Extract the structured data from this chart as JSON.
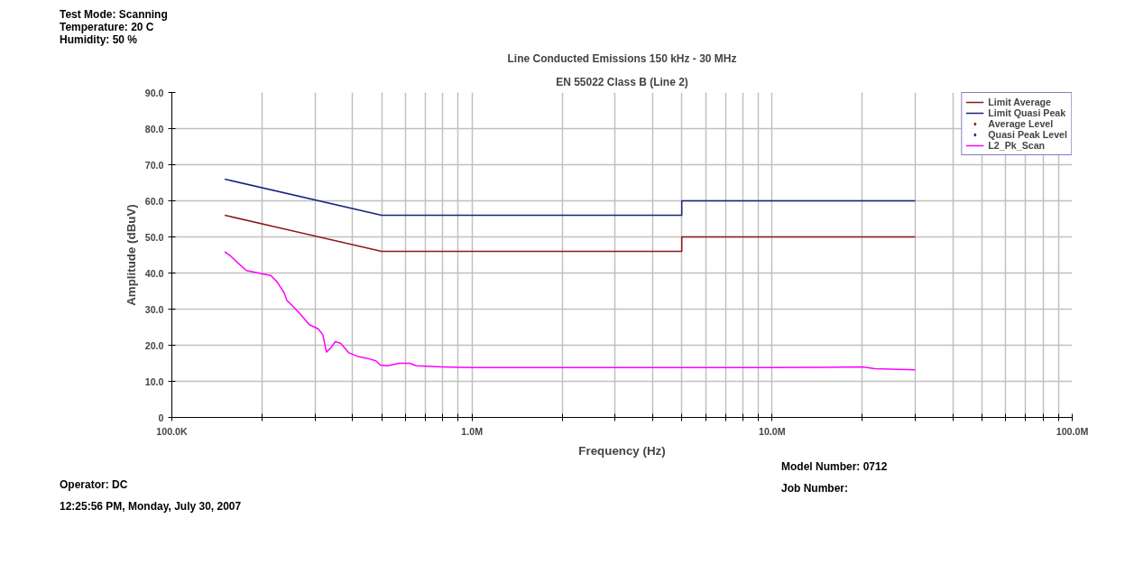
{
  "chart_data": {
    "type": "line",
    "title": "Line Conducted Emissions 150 kHz - 30 MHz",
    "subtitle": "EN 55022 Class B (Line 2)",
    "xlabel": "Frequency (Hz)",
    "ylabel": "Amplitude (dBuV)",
    "log": "x",
    "xlim": [
      100000,
      100000000
    ],
    "ylim": [
      0,
      90
    ],
    "xticks": [
      {
        "value": 100000,
        "label": "100.0K"
      },
      {
        "value": 200000,
        "label": null
      },
      {
        "value": 300000,
        "label": null
      },
      {
        "value": 400000,
        "label": null
      },
      {
        "value": 500000,
        "label": null
      },
      {
        "value": 600000,
        "label": null
      },
      {
        "value": 700000,
        "label": null
      },
      {
        "value": 800000,
        "label": null
      },
      {
        "value": 900000,
        "label": null
      },
      {
        "value": 1000000,
        "label": "1.0M"
      },
      {
        "value": 2000000,
        "label": null
      },
      {
        "value": 3000000,
        "label": null
      },
      {
        "value": 4000000,
        "label": null
      },
      {
        "value": 5000000,
        "label": null
      },
      {
        "value": 6000000,
        "label": null
      },
      {
        "value": 7000000,
        "label": null
      },
      {
        "value": 8000000,
        "label": null
      },
      {
        "value": 9000000,
        "label": null
      },
      {
        "value": 10000000,
        "label": "10.0M"
      },
      {
        "value": 20000000,
        "label": null
      },
      {
        "value": 30000000,
        "label": null
      },
      {
        "value": 40000000,
        "label": null
      },
      {
        "value": 50000000,
        "label": null
      },
      {
        "value": 60000000,
        "label": null
      },
      {
        "value": 70000000,
        "label": null
      },
      {
        "value": 80000000,
        "label": null
      },
      {
        "value": 90000000,
        "label": null
      },
      {
        "value": 100000000,
        "label": "100.0M"
      }
    ],
    "yticks": [
      0,
      {
        "value": 10,
        "label": "10.0"
      },
      {
        "value": 20,
        "label": "20.0"
      },
      {
        "value": 30,
        "label": "30.0"
      },
      {
        "value": 40,
        "label": "40.0"
      },
      {
        "value": 50,
        "label": "50.0"
      },
      {
        "value": 60,
        "label": "60.0"
      },
      {
        "value": 70,
        "label": "70.0"
      },
      {
        "value": 80,
        "label": "80.0"
      },
      {
        "value": 90,
        "label": "90.0"
      }
    ],
    "grid": true,
    "legend": "top right",
    "line_style": "solid",
    "series": [
      {
        "name": "Limit Average",
        "color": "#8b1a1a",
        "x": [
          150000,
          500000,
          5000000,
          5000000,
          30000000
        ],
        "values": [
          56,
          46,
          46,
          50,
          50
        ]
      },
      {
        "name": "Limit Quasi Peak",
        "color": "#1a237e",
        "x": [
          150000,
          500000,
          5000000,
          5000000,
          30000000
        ],
        "values": [
          66,
          56,
          56,
          60,
          60
        ]
      },
      {
        "name": "Average Level",
        "color": "#8b1a1a",
        "type": "scatter",
        "marker": "diamond"
      },
      {
        "name": "Quasi Peak Level",
        "color": "#1a237e",
        "type": "scatter",
        "marker": "diamond"
      },
      {
        "name": "L2_Pk_Scan",
        "color": "#ff00ff",
        "x": [
          150000,
          156500,
          165400,
          177200,
          199300,
          213500,
          224000,
          236700,
          241700,
          250200,
          268000,
          287200,
          307600,
          318400,
          327300,
          338800,
          350700,
          365500,
          388900,
          416700,
          446500,
          478300,
          495100,
          523200,
          572100,
          621500,
          652300,
          791200,
          1000000,
          2000000,
          5000000,
          10000000,
          15000000,
          20000000,
          22000000,
          30000000
        ],
        "values": [
          45.9,
          44.8,
          42.9,
          40.7,
          39.8,
          39.3,
          37.6,
          34.5,
          32.4,
          31.2,
          28.6,
          25.7,
          24.5,
          22.9,
          18.1,
          19.3,
          21.0,
          20.5,
          17.9,
          16.9,
          16.4,
          15.7,
          14.5,
          14.3,
          15.0,
          15.0,
          14.3,
          14.0,
          13.8,
          13.8,
          13.8,
          13.8,
          13.9,
          14.0,
          13.5,
          13.2
        ]
      }
    ],
    "annotations": [
      "Test Mode: Scanning",
      "Temperature: 20 C",
      "Humidity: 50 %",
      "Model Number: 0712",
      "Operator: DC",
      "Job Number:",
      "12:25:56 PM, Monday, July 30, 2007"
    ]
  }
}
